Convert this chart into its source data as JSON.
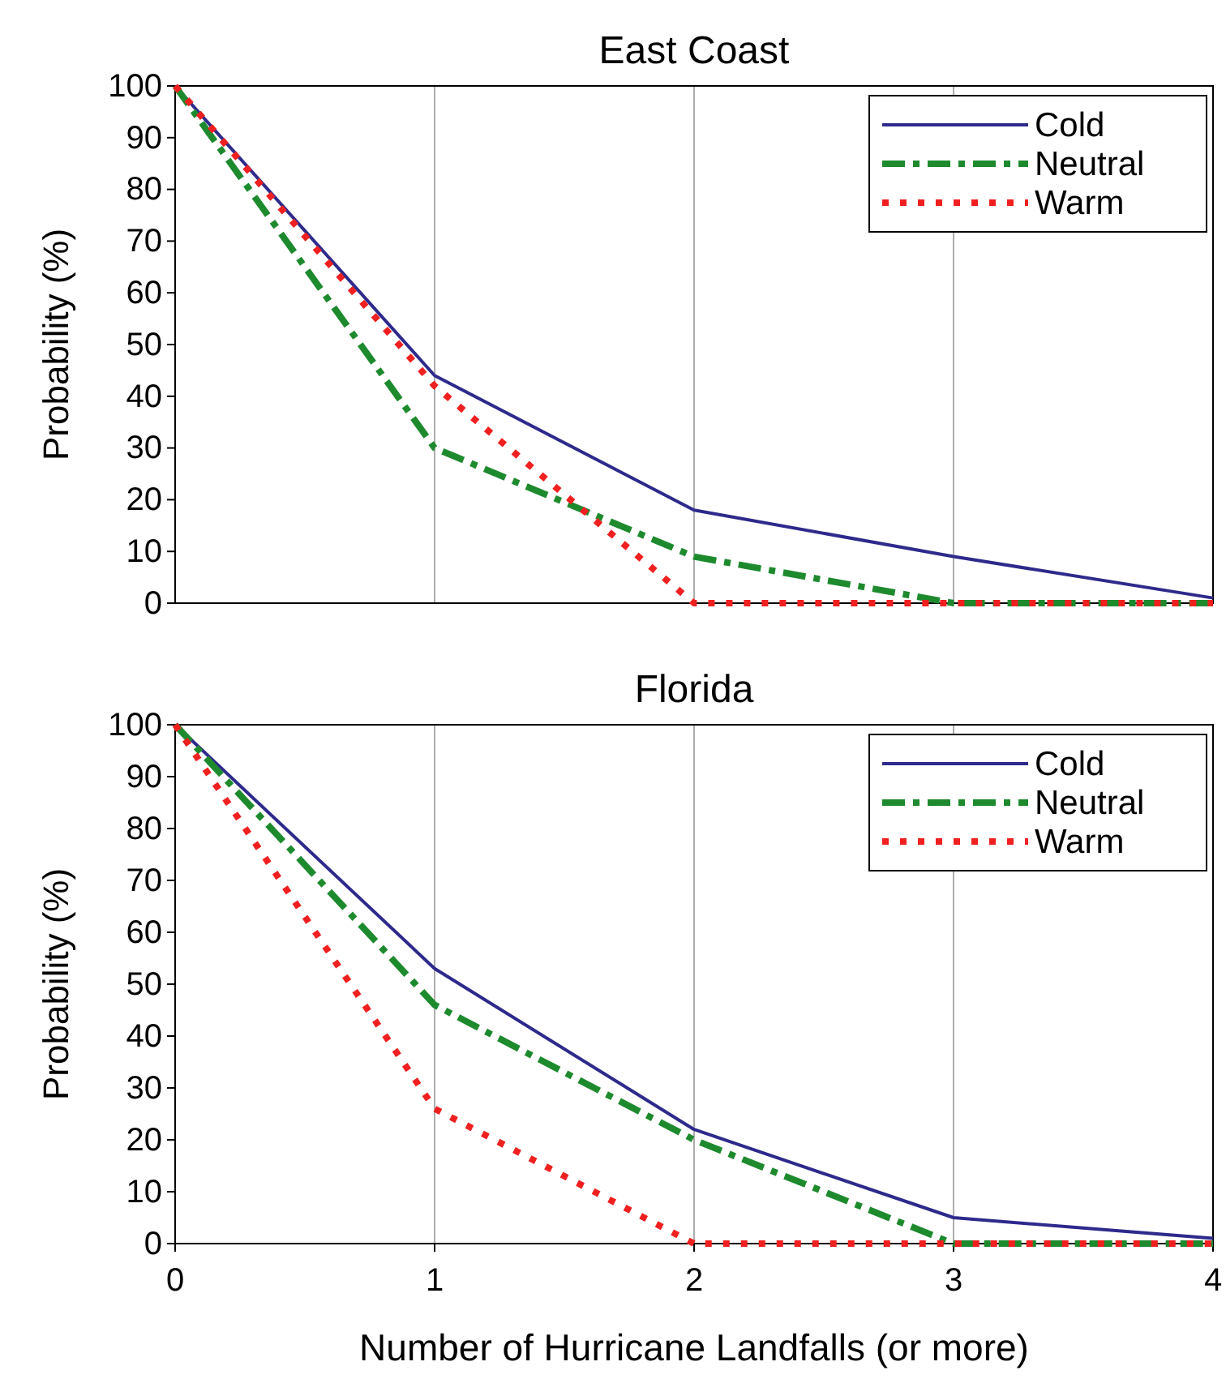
{
  "chart_data": [
    {
      "type": "line",
      "title": "East Coast",
      "ylabel": "Probability (%)",
      "x": [
        0,
        1,
        2,
        3,
        4
      ],
      "xlim": [
        0,
        4
      ],
      "xticks": [
        0,
        1,
        2,
        3,
        4
      ],
      "ylim": [
        0,
        100
      ],
      "yticks": [
        0,
        10,
        20,
        30,
        40,
        50,
        60,
        70,
        80,
        90,
        100
      ],
      "grid": "x",
      "legend": "top right",
      "tick_labels": "y",
      "series": [
        {
          "name": "Cold",
          "color": "#2e2a8c",
          "line_style": "solid",
          "values": [
            100,
            44,
            18,
            9,
            1
          ]
        },
        {
          "name": "Neutral",
          "color": "#1e8a2e",
          "line_style": "dashed",
          "values": [
            100,
            30,
            9,
            0,
            0
          ]
        },
        {
          "name": "Warm",
          "color": "#f02020",
          "line_style": "dotted",
          "values": [
            100,
            42,
            0,
            0,
            0
          ]
        }
      ]
    },
    {
      "type": "line",
      "title": "Florida",
      "xlabel": "Number of Hurricane Landfalls (or more)",
      "ylabel": "Probability (%)",
      "x": [
        0,
        1,
        2,
        3,
        4
      ],
      "xlim": [
        0,
        4
      ],
      "xticks": [
        0,
        1,
        2,
        3,
        4
      ],
      "ylim": [
        0,
        100
      ],
      "yticks": [
        0,
        10,
        20,
        30,
        40,
        50,
        60,
        70,
        80,
        90,
        100
      ],
      "grid": "x",
      "legend": "top right",
      "series": [
        {
          "name": "Cold",
          "color": "#2e2a8c",
          "line_style": "solid",
          "values": [
            100,
            53,
            22,
            5,
            1
          ]
        },
        {
          "name": "Neutral",
          "color": "#1e8a2e",
          "line_style": "dashed",
          "values": [
            100,
            46,
            20,
            0,
            0
          ]
        },
        {
          "name": "Warm",
          "color": "#f02020",
          "line_style": "dotted",
          "values": [
            100,
            26,
            0,
            0,
            0
          ]
        }
      ]
    }
  ]
}
